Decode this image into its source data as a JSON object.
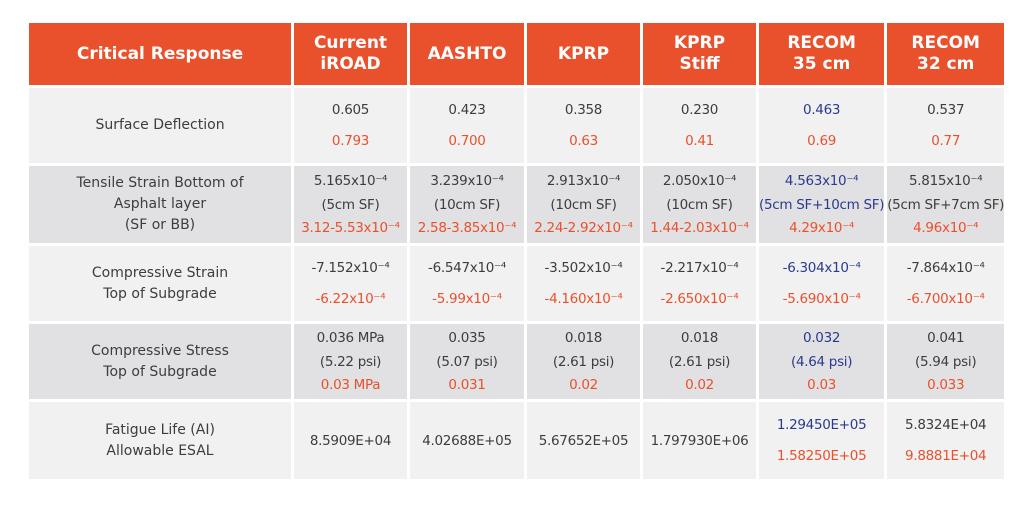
{
  "colors": {
    "header": "#e9512c",
    "dark": "#3d3d3d",
    "red": "#e9512c",
    "blue": "#2b3a8f",
    "light_row": "#f1f1f2",
    "dark_row": "#e1e1e3"
  },
  "table": {
    "header": [
      [
        "Critical Response"
      ],
      [
        "Current",
        "iROAD"
      ],
      [
        "AASHTO"
      ],
      [
        "KPRP"
      ],
      [
        "KPRP",
        "Stiff"
      ],
      [
        "RECOM",
        "35 cm"
      ],
      [
        "RECOM",
        "32 cm"
      ]
    ],
    "rows": [
      {
        "label": [
          "Surface Deflection"
        ],
        "shade": "light_row",
        "cells": [
          [
            {
              "text": "0.605",
              "tone": "dark"
            },
            {
              "text": "0.793",
              "tone": "red"
            }
          ],
          [
            {
              "text": "0.423",
              "tone": "dark"
            },
            {
              "text": "0.700",
              "tone": "red"
            }
          ],
          [
            {
              "text": "0.358",
              "tone": "dark"
            },
            {
              "text": "0.63",
              "tone": "red"
            }
          ],
          [
            {
              "text": "0.230",
              "tone": "dark"
            },
            {
              "text": "0.41",
              "tone": "red"
            }
          ],
          [
            {
              "text": "0.463",
              "tone": "blue"
            },
            {
              "text": "0.69",
              "tone": "red"
            }
          ],
          [
            {
              "text": "0.537",
              "tone": "dark"
            },
            {
              "text": "0.77",
              "tone": "red"
            }
          ]
        ]
      },
      {
        "label": [
          "Tensile Strain Bottom of",
          "Asphalt layer",
          "(SF or BB)"
        ],
        "shade": "dark_row",
        "cells": [
          [
            {
              "text": "5.165x10⁻⁴",
              "tone": "dark"
            },
            {
              "text": "(5cm SF)",
              "tone": "dark"
            },
            {
              "text": "3.12-5.53x10⁻⁴",
              "tone": "red"
            }
          ],
          [
            {
              "text": "3.239x10⁻⁴",
              "tone": "dark"
            },
            {
              "text": "(10cm SF)",
              "tone": "dark"
            },
            {
              "text": "2.58-3.85x10⁻⁴",
              "tone": "red"
            }
          ],
          [
            {
              "text": "2.913x10⁻⁴",
              "tone": "dark"
            },
            {
              "text": "(10cm SF)",
              "tone": "dark"
            },
            {
              "text": "2.24-2.92x10⁻⁴",
              "tone": "red"
            }
          ],
          [
            {
              "text": "2.050x10⁻⁴",
              "tone": "dark"
            },
            {
              "text": "(10cm SF)",
              "tone": "dark"
            },
            {
              "text": "1.44-2.03x10⁻⁴",
              "tone": "red"
            }
          ],
          [
            {
              "text": "4.563x10⁻⁴",
              "tone": "blue"
            },
            {
              "text": "(5cm SF+10cm SF)",
              "tone": "blue"
            },
            {
              "text": "4.29x10⁻⁴",
              "tone": "red"
            }
          ],
          [
            {
              "text": "5.815x10⁻⁴",
              "tone": "dark"
            },
            {
              "text": "(5cm SF+7cm SF)",
              "tone": "dark"
            },
            {
              "text": "4.96x10⁻⁴",
              "tone": "red"
            }
          ]
        ]
      },
      {
        "label": [
          "Compressive Strain",
          "Top of Subgrade"
        ],
        "shade": "light_row",
        "cells": [
          [
            {
              "text": "-7.152x10⁻⁴",
              "tone": "dark"
            },
            {
              "text": "-6.22x10⁻⁴",
              "tone": "red"
            }
          ],
          [
            {
              "text": "-6.547x10⁻⁴",
              "tone": "dark"
            },
            {
              "text": "-5.99x10⁻⁴",
              "tone": "red"
            }
          ],
          [
            {
              "text": "-3.502x10⁻⁴",
              "tone": "dark"
            },
            {
              "text": "-4.160x10⁻⁴",
              "tone": "red"
            }
          ],
          [
            {
              "text": "-2.217x10⁻⁴",
              "tone": "dark"
            },
            {
              "text": "-2.650x10⁻⁴",
              "tone": "red"
            }
          ],
          [
            {
              "text": "-6.304x10⁻⁴",
              "tone": "blue"
            },
            {
              "text": "-5.690x10⁻⁴",
              "tone": "red"
            }
          ],
          [
            {
              "text": "-7.864x10⁻⁴",
              "tone": "dark"
            },
            {
              "text": "-6.700x10⁻⁴",
              "tone": "red"
            }
          ]
        ]
      },
      {
        "label": [
          "Compressive Stress",
          "Top of Subgrade"
        ],
        "shade": "dark_row",
        "cells": [
          [
            {
              "text": "0.036 MPa",
              "tone": "dark"
            },
            {
              "text": "(5.22 psi)",
              "tone": "dark"
            },
            {
              "text": "0.03 MPa",
              "tone": "red"
            }
          ],
          [
            {
              "text": "0.035",
              "tone": "dark"
            },
            {
              "text": "(5.07 psi)",
              "tone": "dark"
            },
            {
              "text": "0.031",
              "tone": "red"
            }
          ],
          [
            {
              "text": "0.018",
              "tone": "dark"
            },
            {
              "text": "(2.61 psi)",
              "tone": "dark"
            },
            {
              "text": "0.02",
              "tone": "red"
            }
          ],
          [
            {
              "text": "0.018",
              "tone": "dark"
            },
            {
              "text": "(2.61 psi)",
              "tone": "dark"
            },
            {
              "text": "0.02",
              "tone": "red"
            }
          ],
          [
            {
              "text": "0.032",
              "tone": "blue"
            },
            {
              "text": "(4.64 psi)",
              "tone": "blue"
            },
            {
              "text": "0.03",
              "tone": "red"
            }
          ],
          [
            {
              "text": "0.041",
              "tone": "dark"
            },
            {
              "text": "(5.94 psi)",
              "tone": "dark"
            },
            {
              "text": "0.033",
              "tone": "red"
            }
          ]
        ]
      },
      {
        "label": [
          "Fatigue Life (AI)",
          "Allowable ESAL"
        ],
        "shade": "light_row",
        "cells": [
          [
            {
              "text": "8.5909E+04",
              "tone": "dark"
            }
          ],
          [
            {
              "text": "4.02688E+05",
              "tone": "dark"
            }
          ],
          [
            {
              "text": "5.67652E+05",
              "tone": "dark"
            }
          ],
          [
            {
              "text": "1.797930E+06",
              "tone": "dark"
            }
          ],
          [
            {
              "text": "1.29450E+05",
              "tone": "blue"
            },
            {
              "text": "1.58250E+05",
              "tone": "red"
            }
          ],
          [
            {
              "text": "5.8324E+04",
              "tone": "dark"
            },
            {
              "text": "9.8881E+04",
              "tone": "red"
            }
          ]
        ]
      }
    ]
  }
}
